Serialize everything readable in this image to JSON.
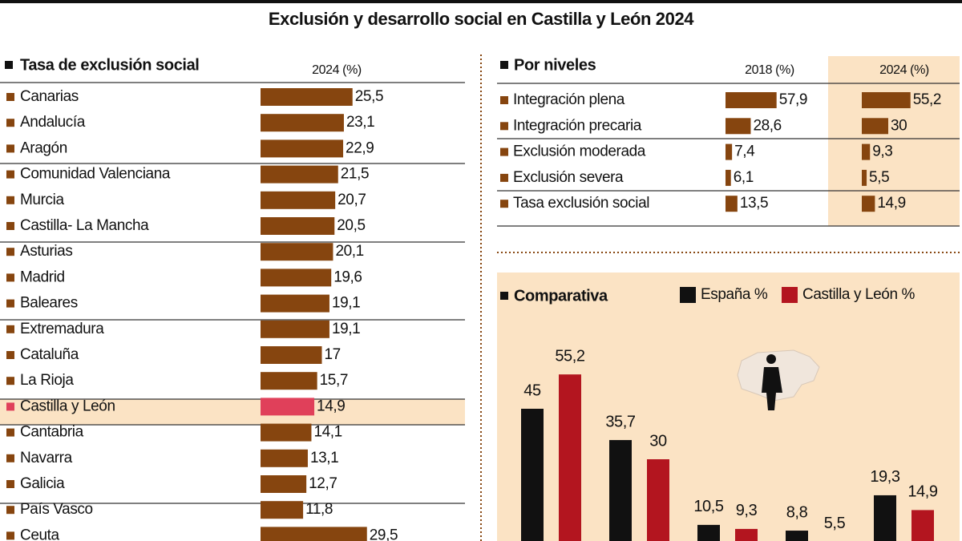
{
  "title": "Exclusión y desarrollo social en Castilla y León 2024",
  "chart_data": [
    {
      "type": "bar",
      "orientation": "horizontal",
      "title": "Tasa de exclusión social",
      "column_header": "2024 (%)",
      "categories": [
        "Canarias",
        "Andalucía",
        "Aragón",
        "Comunidad Valenciana",
        "Murcia",
        "Castilla- La Mancha",
        "Asturias",
        "Madrid",
        "Baleares",
        "Extremadura",
        "Cataluña",
        "La Rioja",
        "Castilla y León",
        "Cantabria",
        "Navarra",
        "Galicia",
        "País Vasco",
        "Ceuta"
      ],
      "values": [
        25.5,
        23.1,
        22.9,
        21.5,
        20.7,
        20.5,
        20.1,
        19.6,
        19.1,
        19.1,
        17,
        15.7,
        14.9,
        14.1,
        13.1,
        12.7,
        11.8,
        29.5
      ],
      "value_labels": [
        "25,5",
        "23,1",
        "22,9",
        "21,5",
        "20,7",
        "20,5",
        "20,1",
        "19,6",
        "19,1",
        "19,1",
        "17",
        "15,7",
        "14,9",
        "14,1",
        "13,1",
        "12,7",
        "11,8",
        "29,5"
      ],
      "color": "#86450f",
      "highlight": "Castilla y León",
      "highlight_color": "#e0405a"
    },
    {
      "type": "bar",
      "orientation": "horizontal",
      "title": "Por niveles",
      "categories": [
        "Integración plena",
        "Integración precaria",
        "Exclusión moderada",
        "Exclusión severa",
        "Tasa exclusión social"
      ],
      "series": [
        {
          "name": "2018 (%)",
          "color": "#86450f",
          "values": [
            57.9,
            28.6,
            7.4,
            6.1,
            13.5
          ],
          "value_labels": [
            "57,9",
            "28,6",
            "7,4",
            "6,1",
            "13,5"
          ]
        },
        {
          "name": "2024 (%)",
          "color": "#86450f",
          "values": [
            55.2,
            30,
            9.3,
            5.5,
            14.9
          ],
          "value_labels": [
            "55,2",
            "30",
            "9,3",
            "5,5",
            "14,9"
          ]
        }
      ]
    },
    {
      "type": "bar",
      "orientation": "vertical",
      "title": "Comparativa",
      "categories": [
        null,
        null,
        null,
        null,
        null
      ],
      "series": [
        {
          "name": "España %",
          "color": "#111111",
          "values": [
            45,
            35.7,
            10.5,
            8.8,
            19.3
          ],
          "value_labels": [
            "45",
            "35,7",
            "10,5",
            "8,8",
            "19,3"
          ]
        },
        {
          "name": "Castilla y León %",
          "color": "#b3151f",
          "values": [
            55.2,
            30,
            9.3,
            5.5,
            14.9
          ],
          "value_labels": [
            "55,2",
            "30",
            "9,3",
            "5,5",
            "14,9"
          ]
        }
      ]
    }
  ]
}
